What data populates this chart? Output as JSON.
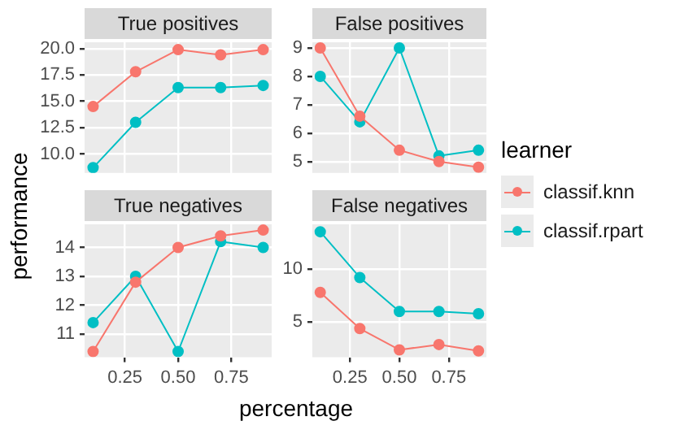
{
  "chart_data": [
    {
      "type": "line",
      "title": "True positives",
      "ylabel": "performance",
      "legend": "right",
      "legend_title": "learner",
      "x": [
        0.1,
        0.3,
        0.5,
        0.7,
        0.9
      ],
      "xlim": [
        0.06,
        0.94
      ],
      "xticks": [
        0.25,
        0.5,
        0.75
      ],
      "ylim": [
        8.2,
        20.6
      ],
      "yticks": [
        {
          "value": 10,
          "label": "10.0"
        },
        {
          "value": 12.5,
          "label": "12.5"
        },
        {
          "value": 15,
          "label": "15.0"
        },
        {
          "value": 17.5,
          "label": "17.5"
        },
        {
          "value": 20,
          "label": "20.0"
        }
      ],
      "grid": true,
      "marker": "circle",
      "tick_labels": "y",
      "series": [
        {
          "name": "classif.knn",
          "color": "#f8766d",
          "values": [
            14.5,
            17.8,
            19.9,
            19.4,
            19.9
          ]
        },
        {
          "name": "classif.rpart",
          "color": "#00bfc4",
          "values": [
            8.7,
            13.0,
            16.3,
            16.3,
            16.5
          ]
        }
      ]
    },
    {
      "type": "line",
      "title": "False positives",
      "x": [
        0.1,
        0.3,
        0.5,
        0.7,
        0.9
      ],
      "xlim": [
        0.06,
        0.94
      ],
      "xticks": [
        0.25,
        0.5,
        0.75
      ],
      "ylim": [
        4.6,
        9.2
      ],
      "yticks": [
        5,
        6,
        7,
        8,
        9
      ],
      "grid": true,
      "marker": "circle",
      "tick_labels": "y",
      "series": [
        {
          "color": "#f8766d",
          "values": [
            9.0,
            6.6,
            5.4,
            5.0,
            4.8
          ]
        },
        {
          "color": "#00bfc4",
          "values": [
            8.0,
            6.4,
            9.0,
            5.2,
            5.4
          ]
        }
      ]
    },
    {
      "type": "line",
      "title": "True negatives",
      "xlabel": "percentage",
      "x": [
        0.1,
        0.3,
        0.5,
        0.7,
        0.9
      ],
      "xlim": [
        0.06,
        0.94
      ],
      "xticks": [
        {
          "value": 0.25,
          "label": "0.25"
        },
        {
          "value": 0.5,
          "label": "0.50"
        },
        {
          "value": 0.75,
          "label": "0.75"
        }
      ],
      "ylim": [
        10.2,
        14.8
      ],
      "yticks": [
        11,
        12,
        13,
        14
      ],
      "grid": true,
      "marker": "circle",
      "series": [
        {
          "color": "#f8766d",
          "values": [
            10.4,
            12.8,
            14.0,
            14.4,
            14.6
          ]
        },
        {
          "color": "#00bfc4",
          "values": [
            11.4,
            13.0,
            10.4,
            14.2,
            14.0
          ]
        }
      ]
    },
    {
      "type": "line",
      "title": "False negatives",
      "x": [
        0.1,
        0.3,
        0.5,
        0.7,
        0.9
      ],
      "xlim": [
        0.06,
        0.94
      ],
      "xticks": [
        {
          "value": 0.25,
          "label": "0.25"
        },
        {
          "value": 0.5,
          "label": "0.50"
        },
        {
          "value": 0.75,
          "label": "0.75"
        }
      ],
      "ylim": [
        1.7,
        14.2
      ],
      "yticks": [
        5,
        10
      ],
      "grid": true,
      "marker": "circle",
      "series": [
        {
          "color": "#f8766d",
          "values": [
            7.8,
            4.4,
            2.4,
            2.9,
            2.3
          ]
        },
        {
          "color": "#00bfc4",
          "values": [
            13.5,
            9.2,
            6.0,
            6.0,
            5.8
          ]
        }
      ]
    }
  ]
}
